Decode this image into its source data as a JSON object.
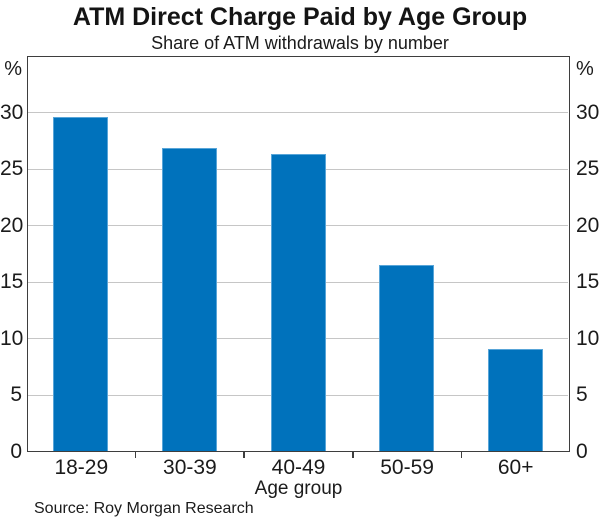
{
  "figure": {
    "title": "ATM Direct Charge Paid by Age Group",
    "subtitle": "Share of ATM withdrawals by number",
    "source": "Source: Roy Morgan Research",
    "unit_left": "%",
    "unit_right": "%",
    "xaxis_title": "Age group"
  },
  "chart_data": {
    "type": "bar",
    "categories": [
      "18-29",
      "30-39",
      "40-49",
      "50-59",
      "60+"
    ],
    "values": [
      29.6,
      26.8,
      26.3,
      16.5,
      9.1
    ],
    "title": "ATM Direct Charge Paid by Age Group",
    "subtitle": "Share of ATM withdrawals by number",
    "xlabel": "Age group",
    "ylabel": "%",
    "ylim": [
      0,
      35
    ],
    "ytick_step": 5,
    "yticks_labeled": [
      0,
      5,
      10,
      15,
      20,
      25,
      30
    ],
    "grid": true,
    "legend": "none",
    "bar_color": "#0072BC",
    "bar_edge_color": "#58a5d8",
    "gridline_color": "#c6c6c6",
    "axis_color": "#3e3e3e",
    "text_color": "#1b1b1b",
    "source": "Source: Roy Morgan Research"
  }
}
